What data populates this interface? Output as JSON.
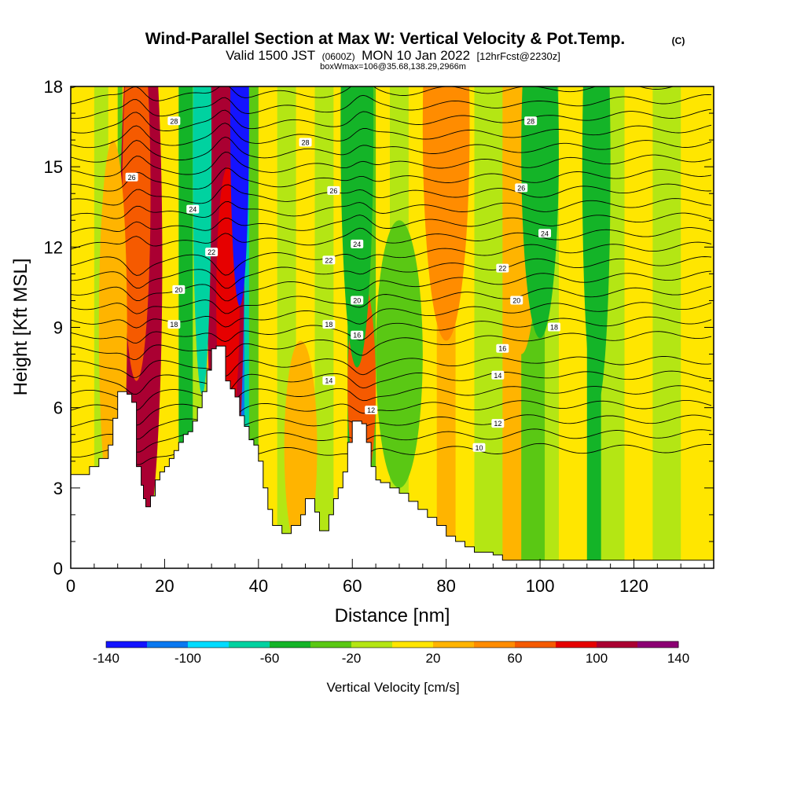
{
  "header": {
    "title_main": "Wind-Parallel Section at Max W: Vertical Velocity & Pot.Temp.",
    "title_mark": "(C)",
    "subtitle_a": "Valid 1500 JST",
    "subtitle_b": "(0600Z)",
    "subtitle_c": "MON 10 Jan 2022",
    "subtitle_d": "[12hrFcst@2230z]",
    "subtitle_line3": "boxWmax=106@35.68,138.29,2966m"
  },
  "chart_data": {
    "type": "heatmap",
    "xlabel": "Distance [nm]",
    "ylabel": "Height [Kft MSL]",
    "xlim": [
      0,
      137
    ],
    "ylim": [
      0,
      18
    ],
    "x_ticks": [
      "0",
      "20",
      "40",
      "60",
      "80",
      "100",
      "120"
    ],
    "x_tick_values": [
      0,
      20,
      40,
      60,
      80,
      100,
      120
    ],
    "y_ticks": [
      "0",
      "3",
      "6",
      "9",
      "12",
      "15",
      "18"
    ],
    "y_tick_values": [
      0,
      3,
      6,
      9,
      12,
      15,
      18
    ],
    "colorbar": {
      "label": "Vertical Velocity [cm/s]",
      "tick_labels": [
        "-140",
        "-100",
        "-60",
        "-20",
        "20",
        "60",
        "100",
        "140"
      ],
      "tick_values": [
        -140,
        -100,
        -60,
        -20,
        20,
        60,
        100,
        140
      ],
      "bins": [
        -140,
        140
      ],
      "bin_width": 20,
      "colors": [
        "#1414ff",
        "#0a78f0",
        "#00dcff",
        "#00d2a0",
        "#14b428",
        "#5ac814",
        "#b4e614",
        "#ffe600",
        "#ffb400",
        "#ff8c00",
        "#f55a00",
        "#e60000",
        "#aa0032",
        "#8c0073"
      ]
    },
    "terrain_profile": {
      "x": [
        0,
        4,
        6,
        8,
        9,
        10,
        12,
        13,
        14,
        15,
        15.5,
        16,
        17,
        18,
        19,
        20,
        21,
        22,
        23,
        24,
        25,
        26,
        27,
        28,
        29,
        30,
        31,
        32,
        33,
        34,
        35,
        36,
        37,
        38,
        39,
        40,
        41,
        42,
        43,
        45,
        47,
        49,
        50,
        52,
        53,
        55,
        56,
        57,
        58,
        59,
        60,
        61,
        62,
        63,
        64,
        65,
        66,
        68,
        70,
        72,
        74,
        76,
        78,
        80,
        82,
        84,
        86,
        88,
        90,
        92,
        137
      ],
      "y": [
        3.5,
        3.8,
        4.1,
        4.6,
        5.6,
        6.6,
        6.5,
        6.2,
        3.8,
        3.1,
        2.6,
        2.3,
        2.7,
        3.3,
        3.6,
        3.8,
        4.1,
        4.4,
        4.7,
        5.0,
        5.1,
        5.5,
        6.0,
        6.6,
        7.4,
        8.2,
        8.3,
        8.3,
        7.0,
        6.7,
        6.4,
        5.7,
        5.3,
        4.8,
        4.6,
        4.0,
        3.0,
        2.2,
        1.6,
        1.3,
        1.6,
        2.0,
        2.6,
        2.1,
        1.4,
        2.0,
        2.6,
        3.0,
        3.6,
        4.7,
        5.5,
        5.5,
        5.4,
        4.7,
        3.8,
        3.3,
        3.2,
        3.0,
        2.8,
        2.5,
        2.2,
        1.9,
        1.6,
        1.2,
        1.0,
        0.8,
        0.6,
        0.6,
        0.5,
        0.3,
        0.3
      ]
    },
    "theta_isolines_K": [
      10,
      12,
      14,
      16,
      18,
      20,
      22,
      24,
      26,
      28
    ],
    "contour_labels": [
      {
        "text": "28",
        "x": 22,
        "y": 16.7
      },
      {
        "text": "28",
        "x": 50,
        "y": 15.9
      },
      {
        "text": "28",
        "x": 98,
        "y": 16.7
      },
      {
        "text": "26",
        "x": 13,
        "y": 14.6
      },
      {
        "text": "26",
        "x": 56,
        "y": 14.1
      },
      {
        "text": "26",
        "x": 96,
        "y": 14.2
      },
      {
        "text": "24",
        "x": 26,
        "y": 13.4
      },
      {
        "text": "24",
        "x": 61,
        "y": 12.1
      },
      {
        "text": "24",
        "x": 101,
        "y": 12.5
      },
      {
        "text": "22",
        "x": 30,
        "y": 11.8
      },
      {
        "text": "22",
        "x": 55,
        "y": 11.5
      },
      {
        "text": "22",
        "x": 92,
        "y": 11.2
      },
      {
        "text": "20",
        "x": 23,
        "y": 10.4
      },
      {
        "text": "20",
        "x": 61,
        "y": 10.0
      },
      {
        "text": "20",
        "x": 95,
        "y": 10.0
      },
      {
        "text": "18",
        "x": 22,
        "y": 9.1
      },
      {
        "text": "18",
        "x": 55,
        "y": 9.1
      },
      {
        "text": "18",
        "x": 103,
        "y": 9.0
      },
      {
        "text": "16",
        "x": 61,
        "y": 8.7
      },
      {
        "text": "16",
        "x": 92,
        "y": 8.2
      },
      {
        "text": "14",
        "x": 55,
        "y": 7.0
      },
      {
        "text": "14",
        "x": 91,
        "y": 7.2
      },
      {
        "text": "12",
        "x": 64,
        "y": 5.9
      },
      {
        "text": "12",
        "x": 91,
        "y": 5.4
      },
      {
        "text": "10",
        "x": 87,
        "y": 4.5
      }
    ]
  }
}
